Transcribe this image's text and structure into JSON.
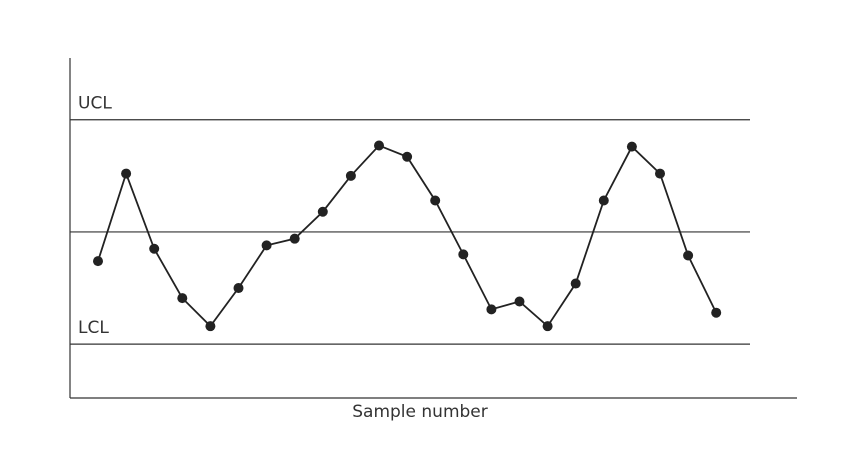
{
  "chart_data": {
    "type": "line",
    "x_label": "Sample number",
    "categories": [
      null,
      null,
      null,
      null,
      null,
      null,
      null,
      null,
      null,
      null,
      null,
      null,
      null,
      null,
      null,
      null,
      null,
      null,
      null,
      null,
      null,
      null,
      null
    ],
    "values": [
      -0.26,
      0.52,
      -0.15,
      -0.59,
      -0.84,
      -0.5,
      -0.12,
      -0.06,
      0.18,
      0.5,
      0.77,
      0.67,
      0.28,
      -0.2,
      -0.69,
      -0.62,
      -0.84,
      -0.46,
      0.28,
      0.76,
      0.52,
      -0.21,
      -0.72
    ],
    "color": "#222222",
    "ylim": [
      -1.48,
      1.55
    ],
    "control_lines": [
      {
        "label": "UCL",
        "value": 1
      },
      {
        "value": 0
      },
      {
        "label": "LCL",
        "value": -1
      }
    ]
  }
}
